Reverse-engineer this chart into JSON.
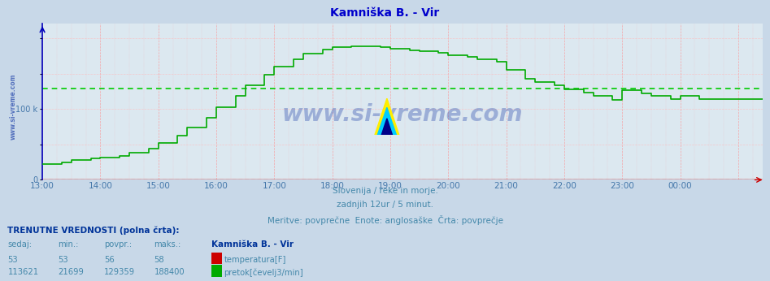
{
  "title": "Kamniška B. - Vir",
  "title_color": "#0000cc",
  "bg_color": "#c8d8e8",
  "plot_bg_color": "#dce8f0",
  "grid_color_v": "#ff8888",
  "grid_color_h": "#ffbbbb",
  "xlabel_color": "#4477aa",
  "ylabel_color": "#4477aa",
  "flow_color": "#00aa00",
  "temp_color": "#cc0000",
  "avg_flow_color": "#00cc00",
  "avg_temp_color": "#cc2222",
  "watermark_color": "#2244aa",
  "watermark_text": "www.si-vreme.com",
  "sidewater_text": "www.si-vreme.com",
  "subtitle1": "Slovenija / reke in morje.",
  "subtitle2": "zadnjih 12ur / 5 minut.",
  "subtitle3": "Meritve: povprečne  Enote: anglosaške  Črta: povprečje",
  "subtitle_color": "#4488aa",
  "footer_label1": "TRENUTNE VREDNOSTI (polna črta):",
  "footer_col_headers": [
    "sedaj:",
    "min.:",
    "povpr.:",
    "maks.:"
  ],
  "footer_station": "Kamniška B. - Vir",
  "footer_temp": [
    53,
    53,
    56,
    58
  ],
  "footer_flow": [
    113621,
    21699,
    129359,
    188400
  ],
  "footer_temp_label": "temperatura[F]",
  "footer_flow_label": "pretok[čevelj3/min]",
  "x_ticks": [
    "13:00",
    "14:00",
    "15:00",
    "16:00",
    "17:00",
    "18:00",
    "19:00",
    "20:00",
    "21:00",
    "22:00",
    "23:00",
    "00:00"
  ],
  "ylim": [
    0,
    220000
  ],
  "y_tick_label": "100 k",
  "y_tick_val": 100000,
  "avg_flow_value": 129359,
  "avg_temp_value": 56,
  "temp_data_value": 53,
  "n_points": 150
}
